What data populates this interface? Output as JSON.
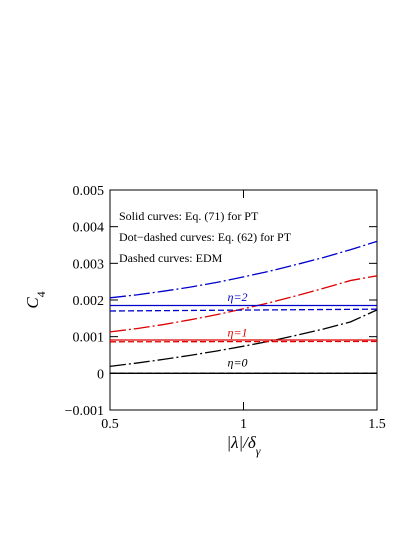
{
  "chart_data": {
    "type": "line",
    "xlabel": "|λ|/δγ",
    "ylabel": "C4",
    "xlim": [
      0.5,
      1.5
    ],
    "ylim": [
      -0.001,
      0.005
    ],
    "x_ticks": [
      {
        "value": 0.5,
        "label": "0.5"
      },
      {
        "value": 1.0,
        "label": "1"
      },
      {
        "value": 1.5,
        "label": "1.5"
      }
    ],
    "y_ticks": [
      {
        "value": -0.001,
        "label": "−0.001"
      },
      {
        "value": 0.0,
        "label": "0"
      },
      {
        "value": 0.001,
        "label": "0.001"
      },
      {
        "value": 0.002,
        "label": "0.002"
      },
      {
        "value": 0.003,
        "label": "0.003"
      },
      {
        "value": 0.004,
        "label": "0.004"
      },
      {
        "value": 0.005,
        "label": "0.005"
      }
    ],
    "grid": false,
    "legend_placement": "top-left",
    "legend_lines": [
      "Solid curves: Eq. (71) for PT",
      "Dot−dashed curves: Eq. (62) for PT",
      "Dashed curves: EDM"
    ],
    "annotations": [
      {
        "text": "η=2",
        "at": [
          1.0,
          0.00197
        ],
        "color": "#0000cc"
      },
      {
        "text": "η=1",
        "at": [
          1.0,
          0.00101
        ],
        "color": "#dd0000"
      },
      {
        "text": "η=0",
        "at": [
          1.0,
          0.00018
        ],
        "color": "#000000"
      }
    ],
    "series": [
      {
        "group": "η=0",
        "style": "solid",
        "color": "#000000",
        "x": [
          0.5,
          1.5
        ],
        "y": [
          0.0,
          0.0
        ]
      },
      {
        "group": "η=0",
        "style": "dashed",
        "color": "#000000",
        "x": [
          0.5,
          1.5
        ],
        "y": [
          0.0,
          0.0
        ]
      },
      {
        "group": "η=0",
        "style": "dotdash",
        "color": "#000000",
        "x": [
          0.5,
          0.6,
          0.7,
          0.8,
          0.9,
          1.0,
          1.1,
          1.2,
          1.3,
          1.4,
          1.5
        ],
        "y": [
          0.00019,
          0.00028,
          0.00038,
          0.00049,
          0.00061,
          0.00074,
          0.00088,
          0.00104,
          0.00121,
          0.0014,
          0.00173
        ]
      },
      {
        "group": "η=1",
        "style": "solid",
        "color": "#dd0000",
        "x": [
          0.5,
          1.5
        ],
        "y": [
          0.00091,
          0.00091
        ]
      },
      {
        "group": "η=1",
        "style": "dashed",
        "color": "#dd0000",
        "x": [
          0.5,
          1.5
        ],
        "y": [
          0.00086,
          0.00087
        ]
      },
      {
        "group": "η=1",
        "style": "dotdash",
        "color": "#dd0000",
        "x": [
          0.5,
          0.6,
          0.7,
          0.8,
          0.9,
          1.0,
          1.1,
          1.2,
          1.3,
          1.4,
          1.5
        ],
        "y": [
          0.00113,
          0.00122,
          0.00133,
          0.00146,
          0.0016,
          0.00176,
          0.00193,
          0.00212,
          0.00232,
          0.00253,
          0.00266
        ]
      },
      {
        "group": "η=2",
        "style": "solid",
        "color": "#0000cc",
        "x": [
          0.5,
          1.5
        ],
        "y": [
          0.00185,
          0.00185
        ]
      },
      {
        "group": "η=2",
        "style": "dashed",
        "color": "#0000cc",
        "x": [
          0.5,
          1.5
        ],
        "y": [
          0.0017,
          0.00175
        ]
      },
      {
        "group": "η=2",
        "style": "dotdash",
        "color": "#0000cc",
        "x": [
          0.5,
          0.6,
          0.7,
          0.8,
          0.9,
          1.0,
          1.1,
          1.2,
          1.3,
          1.4,
          1.5
        ],
        "y": [
          0.00206,
          0.00214,
          0.00224,
          0.00235,
          0.00248,
          0.00263,
          0.00279,
          0.00297,
          0.00316,
          0.00337,
          0.0036
        ]
      }
    ]
  }
}
